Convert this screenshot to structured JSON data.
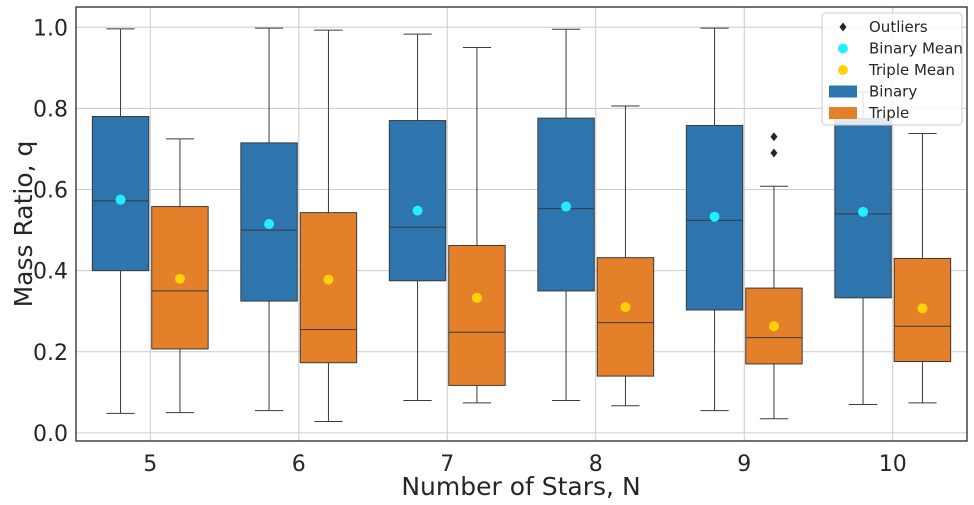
{
  "chart_data": {
    "type": "box",
    "title": "",
    "xlabel": "Number of Stars, N",
    "ylabel": "Mass Ratio, q",
    "categories": [
      "5",
      "6",
      "7",
      "8",
      "9",
      "10"
    ],
    "ylim": [
      -0.02,
      1.05
    ],
    "yticks": [
      "0.0",
      "0.2",
      "0.4",
      "0.6",
      "0.8",
      "1.0"
    ],
    "grid": true,
    "legend_position": "top-right",
    "series": [
      {
        "name": "Binary",
        "color": "#2e75ad",
        "mean_label": "Binary Mean",
        "mean_color": "#22eeff",
        "boxes": [
          {
            "whislo": 0.048,
            "q1": 0.4,
            "med": 0.572,
            "q3": 0.78,
            "whishi": 0.996,
            "mean": 0.575,
            "fliers": []
          },
          {
            "whislo": 0.055,
            "q1": 0.325,
            "med": 0.5,
            "q3": 0.715,
            "whishi": 0.998,
            "mean": 0.515,
            "fliers": []
          },
          {
            "whislo": 0.08,
            "q1": 0.375,
            "med": 0.507,
            "q3": 0.77,
            "whishi": 0.983,
            "mean": 0.548,
            "fliers": []
          },
          {
            "whislo": 0.08,
            "q1": 0.35,
            "med": 0.553,
            "q3": 0.776,
            "whishi": 0.995,
            "mean": 0.558,
            "fliers": []
          },
          {
            "whislo": 0.055,
            "q1": 0.303,
            "med": 0.524,
            "q3": 0.758,
            "whishi": 0.998,
            "mean": 0.533,
            "fliers": []
          },
          {
            "whislo": 0.07,
            "q1": 0.333,
            "med": 0.54,
            "q3": 0.775,
            "whishi": 0.84,
            "mean": 0.545,
            "fliers": []
          }
        ]
      },
      {
        "name": "Triple",
        "color": "#e5802a",
        "mean_label": "Triple Mean",
        "mean_color": "#ffd20a",
        "boxes": [
          {
            "whislo": 0.05,
            "q1": 0.207,
            "med": 0.35,
            "q3": 0.558,
            "whishi": 0.725,
            "mean": 0.38,
            "fliers": []
          },
          {
            "whislo": 0.028,
            "q1": 0.173,
            "med": 0.255,
            "q3": 0.543,
            "whishi": 0.993,
            "mean": 0.378,
            "fliers": []
          },
          {
            "whislo": 0.074,
            "q1": 0.117,
            "med": 0.248,
            "q3": 0.462,
            "whishi": 0.95,
            "mean": 0.333,
            "fliers": []
          },
          {
            "whislo": 0.067,
            "q1": 0.14,
            "med": 0.272,
            "q3": 0.432,
            "whishi": 0.806,
            "mean": 0.31,
            "fliers": []
          },
          {
            "whislo": 0.035,
            "q1": 0.17,
            "med": 0.235,
            "q3": 0.357,
            "whishi": 0.608,
            "mean": 0.263,
            "fliers": [
              0.69,
              0.73
            ]
          },
          {
            "whislo": 0.074,
            "q1": 0.176,
            "med": 0.263,
            "q3": 0.43,
            "whishi": 0.738,
            "mean": 0.307,
            "fliers": []
          }
        ]
      }
    ],
    "legend": [
      {
        "label": "Outliers",
        "marker": "diamond",
        "color": "#262626"
      },
      {
        "label": "Binary Mean",
        "marker": "circle",
        "color": "#22eeff"
      },
      {
        "label": "Triple Mean",
        "marker": "circle",
        "color": "#ffd20a"
      },
      {
        "label": "Binary",
        "marker": "patch",
        "color": "#2e75ad"
      },
      {
        "label": "Triple",
        "marker": "patch",
        "color": "#e5802a"
      }
    ]
  }
}
